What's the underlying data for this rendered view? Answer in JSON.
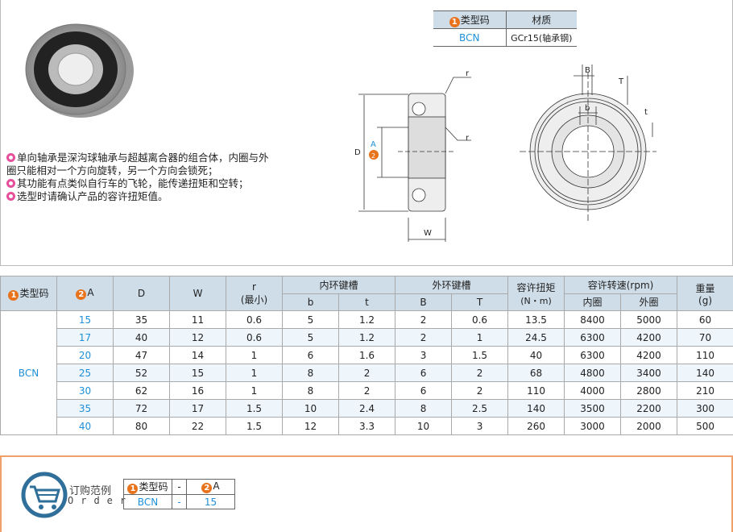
{
  "material_table": {
    "headers": [
      "类型码",
      "材质"
    ],
    "row": [
      "BCN",
      "GCr15(轴承钢)"
    ]
  },
  "description": [
    "单向轴承是深沟球轴承与超越离合器的组合体，内圈与外圈只能相对一个方向旋转，另一个方向会锁死；",
    "其功能有点类似自行车的飞轮，能传递扭矩和空转；",
    "选型时请确认产品的容许扭矩值。"
  ],
  "drawing_labels": {
    "r": "r",
    "D": "D",
    "A": "A",
    "W": "W",
    "B": "B",
    "T": "T",
    "b": "b",
    "t": "t",
    "n2": "2"
  },
  "spec_table": {
    "header": {
      "type_code": "类型码",
      "A": "A",
      "D": "D",
      "W": "W",
      "r": "r",
      "r_sub": "(最小)",
      "inner": "内环键槽",
      "outer": "外环键槽",
      "torque": "容许扭矩",
      "torque_unit": "(N・m)",
      "speed": "容许转速(rpm)",
      "weight": "重量",
      "weight_unit": "(g)",
      "b": "b",
      "t": "t",
      "B": "B",
      "T": "T",
      "inner_ring": "内圈",
      "outer_ring": "外圈",
      "n1": "1",
      "n2": "2"
    },
    "type": "BCN",
    "rows": [
      [
        "15",
        "35",
        "11",
        "0.6",
        "5",
        "1.2",
        "2",
        "0.6",
        "13.5",
        "8400",
        "5000",
        "60"
      ],
      [
        "17",
        "40",
        "12",
        "0.6",
        "5",
        "1.2",
        "2",
        "1",
        "24.5",
        "6300",
        "4200",
        "70"
      ],
      [
        "20",
        "47",
        "14",
        "1",
        "6",
        "1.6",
        "3",
        "1.5",
        "40",
        "6300",
        "4200",
        "110"
      ],
      [
        "25",
        "52",
        "15",
        "1",
        "8",
        "2",
        "6",
        "2",
        "68",
        "4800",
        "3400",
        "140"
      ],
      [
        "30",
        "62",
        "16",
        "1",
        "8",
        "2",
        "6",
        "2",
        "110",
        "4000",
        "2800",
        "210"
      ],
      [
        "35",
        "72",
        "17",
        "1.5",
        "10",
        "2.4",
        "8",
        "2.5",
        "140",
        "3500",
        "2200",
        "300"
      ],
      [
        "40",
        "80",
        "22",
        "1.5",
        "12",
        "3.3",
        "10",
        "3",
        "260",
        "3000",
        "2000",
        "500"
      ]
    ]
  },
  "order": {
    "title": "订购范例",
    "subtitle": "Order",
    "headers": [
      "类型码",
      "-",
      "A"
    ],
    "row": [
      "BCN",
      "-",
      "15"
    ],
    "icon": "shopping-cart-icon"
  },
  "colors": {
    "accent_orange": "#e8731c",
    "link_blue": "#1e90d8",
    "header_bg": "#cfdde8",
    "bullet_pink": "#e64f9a"
  }
}
